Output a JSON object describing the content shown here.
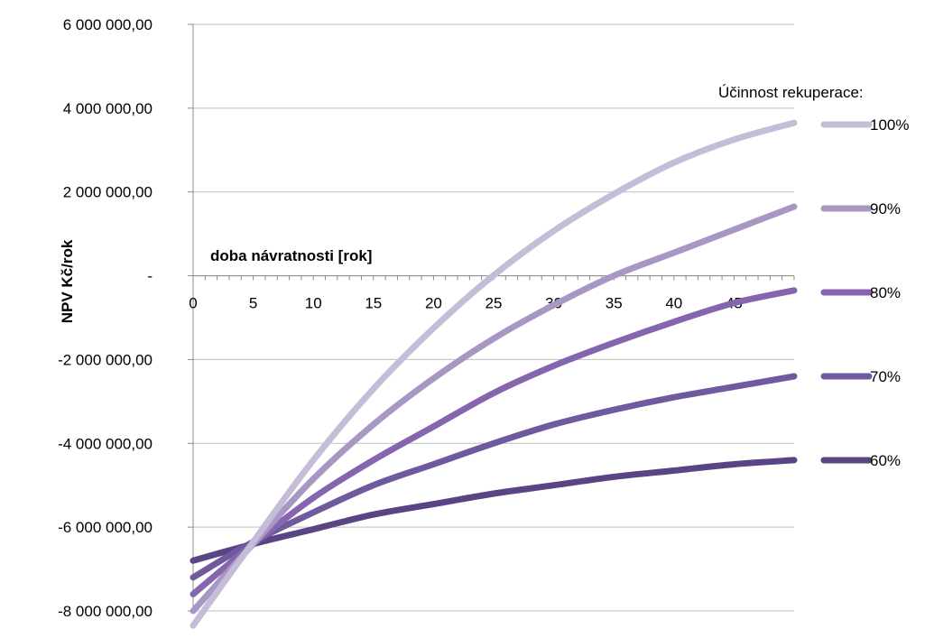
{
  "chart_data": {
    "type": "line",
    "xlabel": "doba návratnosti [rok]",
    "ylabel": "NPV Kč/rok",
    "xlim": [
      0,
      50
    ],
    "ylim": [
      -8000000,
      6000000
    ],
    "x_ticks": [
      0,
      5,
      10,
      15,
      20,
      25,
      30,
      35,
      40,
      45
    ],
    "x_tick_labels": [
      "0",
      "5",
      "10",
      "15",
      "20",
      "25",
      "30",
      "35",
      "40",
      "45"
    ],
    "y_ticks": [
      6000000,
      4000000,
      2000000,
      0,
      -2000000,
      -4000000,
      -6000000,
      -8000000
    ],
    "y_tick_labels": [
      "6 000 000,00",
      "4 000 000,00",
      "2 000 000,00",
      "-",
      "-2 000 000,00",
      "-4 000 000,00",
      "-6 000 000,00",
      "-8 000 000,00"
    ],
    "grid": "horizontal",
    "legend_title": "Účinnost rekuperace:",
    "legend_position": "right",
    "x": [
      0,
      5,
      10,
      15,
      20,
      25,
      30,
      35,
      40,
      45,
      50
    ],
    "series": [
      {
        "name": "100%",
        "color": "#c5bcd8",
        "values": [
          -8350000,
          -6350000,
          -4400000,
          -2700000,
          -1250000,
          10000,
          1070000,
          1950000,
          2700000,
          3250000,
          3650000
        ]
      },
      {
        "name": "90%",
        "color": "#a897c2",
        "values": [
          -8000000,
          -6400000,
          -4850000,
          -3550000,
          -2450000,
          -1500000,
          -700000,
          0,
          550000,
          1100000,
          1650000
        ]
      },
      {
        "name": "80%",
        "color": "#8566ae",
        "values": [
          -7600000,
          -6400000,
          -5300000,
          -4400000,
          -3600000,
          -2800000,
          -2150000,
          -1600000,
          -1100000,
          -650000,
          -350000
        ]
      },
      {
        "name": "70%",
        "color": "#6e5a9c",
        "values": [
          -7200000,
          -6350000,
          -5650000,
          -5000000,
          -4500000,
          -4000000,
          -3550000,
          -3200000,
          -2900000,
          -2650000,
          -2400000
        ]
      },
      {
        "name": "60%",
        "color": "#5a4584",
        "values": [
          -6800000,
          -6400000,
          -6050000,
          -5700000,
          -5450000,
          -5200000,
          -5000000,
          -4800000,
          -4650000,
          -4500000,
          -4400000
        ]
      }
    ]
  }
}
